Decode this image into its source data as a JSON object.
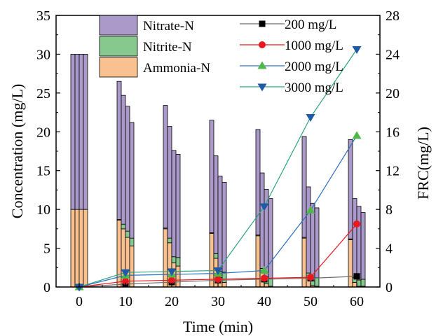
{
  "chart_data": {
    "type": "bar+line",
    "xlabel": "Time (min)",
    "ylabel_left": "Concentration (mg/L)",
    "ylabel_right": "FRC(mg/L)",
    "x_ticks": [
      "0",
      "10",
      "20",
      "30",
      "40",
      "50",
      "60"
    ],
    "y_left_ticks": [
      "0",
      "5",
      "10",
      "15",
      "20",
      "25",
      "30",
      "35"
    ],
    "y_right_ticks": [
      "0",
      "4",
      "8",
      "12",
      "16",
      "20",
      "24",
      "28"
    ],
    "y_left_range": [
      0,
      35
    ],
    "y_right_range": [
      0,
      28
    ],
    "stack_legend": [
      "Nitrate-N",
      "Nitrite-N",
      "Ammonia-N"
    ],
    "line_legend": [
      "200 mg/L",
      "1000 mg/L",
      "2000 mg/L",
      "3000 mg/L"
    ],
    "colors": {
      "nitrate": "#ab9ac9",
      "nitrite": "#87c88f",
      "ammonia": "#f9c18f",
      "line_200": "#000000",
      "line_1000": "#e8181f",
      "line_2000": "#4fb848",
      "line_3000": "#1f5aa8",
      "line_200_stroke": "#6d6d6d",
      "line_1000_stroke": "#e8181f",
      "line_2000_stroke": "#2d6fc0",
      "line_3000_stroke": "#2ba37e"
    },
    "bar_groups": [
      {
        "time": 0,
        "bars": [
          {
            "concentration": "200 mg/L",
            "ammonia": 10,
            "nitrite": 0,
            "nitrate": 20
          },
          {
            "concentration": "1000 mg/L",
            "ammonia": 10,
            "nitrite": 0,
            "nitrate": 20
          },
          {
            "concentration": "2000 mg/L",
            "ammonia": 10,
            "nitrite": 0,
            "nitrate": 20
          },
          {
            "concentration": "3000 mg/L",
            "ammonia": 10,
            "nitrite": 0,
            "nitrate": 20
          }
        ]
      },
      {
        "time": 10,
        "bars": [
          {
            "concentration": "200 mg/L",
            "ammonia": 8.6,
            "nitrite": 0.1,
            "nitrate": 17.8
          },
          {
            "concentration": "1000 mg/L",
            "ammonia": 7.5,
            "nitrite": 0.6,
            "nitrate": 16.6
          },
          {
            "concentration": "2000 mg/L",
            "ammonia": 6.4,
            "nitrite": 0.8,
            "nitrate": 16.1
          },
          {
            "concentration": "3000 mg/L",
            "ammonia": 5.3,
            "nitrite": 1.0,
            "nitrate": 14.9
          }
        ]
      },
      {
        "time": 20,
        "bars": [
          {
            "concentration": "200 mg/L",
            "ammonia": 7.5,
            "nitrite": 0.1,
            "nitrate": 15.8
          },
          {
            "concentration": "1000 mg/L",
            "ammonia": 5.7,
            "nitrite": 0.6,
            "nitrate": 14.4
          },
          {
            "concentration": "2000 mg/L",
            "ammonia": 3.1,
            "nitrite": 0.8,
            "nitrate": 13.7
          },
          {
            "concentration": "3000 mg/L",
            "ammonia": 2.7,
            "nitrite": 1.1,
            "nitrate": 13.3
          }
        ]
      },
      {
        "time": 30,
        "bars": [
          {
            "concentration": "200 mg/L",
            "ammonia": 6.9,
            "nitrite": 0.1,
            "nitrate": 14.5
          },
          {
            "concentration": "1000 mg/L",
            "ammonia": 3.7,
            "nitrite": 0.6,
            "nitrate": 12.6
          },
          {
            "concentration": "2000 mg/L",
            "ammonia": 1.2,
            "nitrite": 0.8,
            "nitrate": 12.3
          },
          {
            "concentration": "3000 mg/L",
            "ammonia": 0.6,
            "nitrite": 1.3,
            "nitrate": 11.6
          }
        ]
      },
      {
        "time": 40,
        "bars": [
          {
            "concentration": "200 mg/L",
            "ammonia": 6.6,
            "nitrite": 0.1,
            "nitrate": 13.6
          },
          {
            "concentration": "1000 mg/L",
            "ammonia": 1.8,
            "nitrite": 0.6,
            "nitrate": 12.3
          },
          {
            "concentration": "2000 mg/L",
            "ammonia": 0.4,
            "nitrite": 0.9,
            "nitrate": 11.3
          },
          {
            "concentration": "3000 mg/L",
            "ammonia": 0.1,
            "nitrite": 1.0,
            "nitrate": 10.3
          }
        ]
      },
      {
        "time": 50,
        "bars": [
          {
            "concentration": "200 mg/L",
            "ammonia": 6.3,
            "nitrite": 0.1,
            "nitrate": 13.0
          },
          {
            "concentration": "1000 mg/L",
            "ammonia": 1.2,
            "nitrite": 0.6,
            "nitrate": 11.1
          },
          {
            "concentration": "2000 mg/L",
            "ammonia": 0.2,
            "nitrite": 0.6,
            "nitrate": 10.0
          },
          {
            "concentration": "3000 mg/L",
            "ammonia": 0.1,
            "nitrite": 1.1,
            "nitrate": 9.0
          }
        ]
      },
      {
        "time": 60,
        "bars": [
          {
            "concentration": "200 mg/L",
            "ammonia": 6.1,
            "nitrite": 0.1,
            "nitrate": 12.8
          },
          {
            "concentration": "1000 mg/L",
            "ammonia": 0.6,
            "nitrite": 0.6,
            "nitrate": 10.2
          },
          {
            "concentration": "2000 mg/L",
            "ammonia": 0.1,
            "nitrite": 0.8,
            "nitrate": 9.5
          },
          {
            "concentration": "3000 mg/L",
            "ammonia": 0.1,
            "nitrite": 0.9,
            "nitrate": 8.6
          }
        ]
      }
    ],
    "line_series": [
      {
        "name": "200 mg/L",
        "marker": "square",
        "x": [
          0,
          10,
          20,
          30,
          40,
          50,
          60
        ],
        "y": [
          0,
          0.3,
          0.5,
          0.7,
          0.8,
          0.9,
          1.1
        ]
      },
      {
        "name": "1000 mg/L",
        "marker": "circle",
        "x": [
          0,
          10,
          20,
          30,
          40,
          50,
          60
        ],
        "y": [
          0,
          0.6,
          0.7,
          0.8,
          0.9,
          1.0,
          6.5
        ]
      },
      {
        "name": "2000 mg/L",
        "marker": "triangle-up",
        "x": [
          0,
          10,
          20,
          30,
          40,
          50,
          60
        ],
        "y": [
          0,
          1.2,
          1.3,
          1.4,
          1.7,
          7.9,
          15.6
        ]
      },
      {
        "name": "3000 mg/L",
        "marker": "triangle-down",
        "x": [
          0,
          10,
          20,
          30,
          40,
          50,
          60
        ],
        "y": [
          0,
          1.5,
          1.6,
          1.7,
          8.3,
          17.5,
          24.5
        ]
      }
    ],
    "grid": false,
    "legend_placement": "top"
  }
}
